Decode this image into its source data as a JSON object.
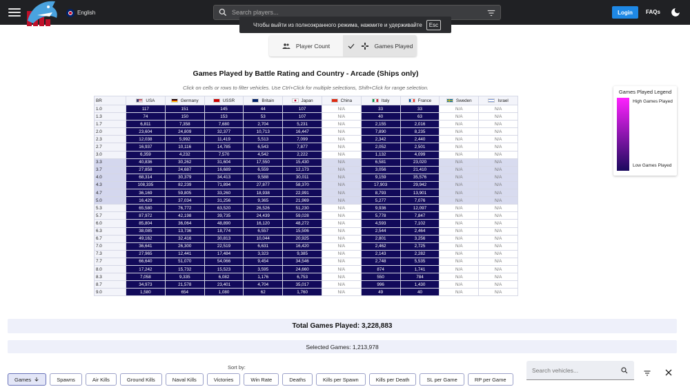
{
  "header": {
    "language": "English",
    "search_placeholder": "Search players...",
    "login_label": "Login",
    "faqs_label": "FAQs"
  },
  "toast": {
    "text": "Чтобы выйти из полноэкранного режима, нажмите и удерживайте",
    "key": "Esc"
  },
  "toggle": {
    "player_count": "Player Count",
    "games_played": "Games Played"
  },
  "title": "Games Played by Battle Rating and Country - Arcade (Ships only)",
  "subtitle": "Click on cells or rows to filter vehicles. Use Ctrl+Click for multiple selections, Shift+Click for range selection.",
  "table": {
    "br_header": "BR",
    "countries": [
      {
        "name": "USA",
        "flag": "us"
      },
      {
        "name": "Germany",
        "flag": "de"
      },
      {
        "name": "USSR",
        "flag": "su"
      },
      {
        "name": "Britain",
        "flag": "gb"
      },
      {
        "name": "Japan",
        "flag": "jp"
      },
      {
        "name": "China",
        "flag": "cn"
      },
      {
        "name": "Italy",
        "flag": "it"
      },
      {
        "name": "France",
        "flag": "fr"
      },
      {
        "name": "Sweden",
        "flag": "se"
      },
      {
        "name": "Israel",
        "flag": "il"
      }
    ],
    "rows": [
      {
        "br": "1.0",
        "sel": false,
        "cells": [
          "117",
          "151",
          "145",
          "44",
          "107",
          "N/A",
          "33",
          "33",
          "N/A",
          "N/A"
        ]
      },
      {
        "br": "1.3",
        "sel": false,
        "cells": [
          "74",
          "150",
          "153",
          "53",
          "107",
          "N/A",
          "40",
          "63",
          "N/A",
          "N/A"
        ]
      },
      {
        "br": "1.7",
        "sel": false,
        "cells": [
          "6,811",
          "7,358",
          "7,680",
          "2,704",
          "5,231",
          "N/A",
          "2,155",
          "2,016",
          "N/A",
          "N/A"
        ]
      },
      {
        "br": "2.0",
        "sel": false,
        "cells": [
          "23,604",
          "24,809",
          "32,377",
          "10,713",
          "16,447",
          "N/A",
          "7,890",
          "8,235",
          "N/A",
          "N/A"
        ]
      },
      {
        "br": "2.3",
        "sel": false,
        "cells": [
          "12,038",
          "5,992",
          "11,419",
          "5,513",
          "7,099",
          "N/A",
          "2,342",
          "2,440",
          "N/A",
          "N/A"
        ]
      },
      {
        "br": "2.7",
        "sel": false,
        "cells": [
          "16,937",
          "10,116",
          "14,785",
          "6,543",
          "7,877",
          "N/A",
          "2,052",
          "2,501",
          "N/A",
          "N/A"
        ]
      },
      {
        "br": "3.0",
        "sel": false,
        "cells": [
          "6,359",
          "4,232",
          "7,570",
          "4,542",
          "2,222",
          "N/A",
          "1,132",
          "4,099",
          "N/A",
          "N/A"
        ]
      },
      {
        "br": "3.3",
        "sel": true,
        "cells": [
          "40,836",
          "30,262",
          "31,604",
          "17,550",
          "15,430",
          "N/A",
          "6,581",
          "23,020",
          "N/A",
          "N/A"
        ]
      },
      {
        "br": "3.7",
        "sel": true,
        "cells": [
          "27,858",
          "24,687",
          "16,689",
          "6,559",
          "12,173",
          "N/A",
          "3,056",
          "21,410",
          "N/A",
          "N/A"
        ]
      },
      {
        "br": "4.0",
        "sel": true,
        "cells": [
          "68,314",
          "30,379",
          "34,413",
          "9,588",
          "30,011",
          "N/A",
          "9,159",
          "35,576",
          "N/A",
          "N/A"
        ]
      },
      {
        "br": "4.3",
        "sel": true,
        "cells": [
          "108,335",
          "82,239",
          "71,894",
          "27,877",
          "58,370",
          "N/A",
          "17,903",
          "29,942",
          "N/A",
          "N/A"
        ]
      },
      {
        "br": "4.7",
        "sel": true,
        "cells": [
          "36,169",
          "59,805",
          "33,260",
          "18,938",
          "22,991",
          "N/A",
          "8,793",
          "13,901",
          "N/A",
          "N/A"
        ]
      },
      {
        "br": "5.0",
        "sel": true,
        "cells": [
          "16,429",
          "37,034",
          "31,256",
          "9,365",
          "21,969",
          "N/A",
          "5,277",
          "7,076",
          "N/A",
          "N/A"
        ]
      },
      {
        "br": "5.3",
        "sel": false,
        "cells": [
          "65,580",
          "76,772",
          "63,520",
          "26,526",
          "51,230",
          "N/A",
          "9,936",
          "12,097",
          "N/A",
          "N/A"
        ]
      },
      {
        "br": "5.7",
        "sel": false,
        "cells": [
          "87,972",
          "42,198",
          "39,735",
          "24,439",
          "59,028",
          "N/A",
          "5,778",
          "7,847",
          "N/A",
          "N/A"
        ]
      },
      {
        "br": "6.0",
        "sel": false,
        "cells": [
          "85,804",
          "36,064",
          "48,890",
          "16,120",
          "48,272",
          "N/A",
          "4,593",
          "7,102",
          "N/A",
          "N/A"
        ]
      },
      {
        "br": "6.3",
        "sel": false,
        "cells": [
          "38,085",
          "13,736",
          "18,774",
          "6,557",
          "15,506",
          "N/A",
          "2,544",
          "2,464",
          "N/A",
          "N/A"
        ]
      },
      {
        "br": "6.7",
        "sel": false,
        "cells": [
          "49,162",
          "32,416",
          "30,813",
          "10,044",
          "20,925",
          "N/A",
          "2,801",
          "3,256",
          "N/A",
          "N/A"
        ]
      },
      {
        "br": "7.0",
        "sel": false,
        "cells": [
          "36,641",
          "26,300",
          "22,519",
          "6,631",
          "16,420",
          "N/A",
          "2,462",
          "2,725",
          "N/A",
          "N/A"
        ]
      },
      {
        "br": "7.3",
        "sel": false,
        "cells": [
          "27,965",
          "12,441",
          "17,484",
          "3,323",
          "9,385",
          "N/A",
          "2,143",
          "2,282",
          "N/A",
          "N/A"
        ]
      },
      {
        "br": "7.7",
        "sel": false,
        "cells": [
          "66,640",
          "51,070",
          "54,066",
          "9,454",
          "34,546",
          "N/A",
          "2,748",
          "5,535",
          "N/A",
          "N/A"
        ]
      },
      {
        "br": "8.0",
        "sel": false,
        "cells": [
          "17,242",
          "15,732",
          "15,523",
          "3,595",
          "24,660",
          "N/A",
          "874",
          "1,741",
          "N/A",
          "N/A"
        ]
      },
      {
        "br": "8.3",
        "sel": false,
        "cells": [
          "7,058",
          "9,335",
          "6,082",
          "1,176",
          "6,753",
          "N/A",
          "550",
          "784",
          "N/A",
          "N/A"
        ]
      },
      {
        "br": "8.7",
        "sel": false,
        "cells": [
          "34,973",
          "21,578",
          "23,401",
          "4,704",
          "35,017",
          "N/A",
          "996",
          "1,430",
          "N/A",
          "N/A"
        ]
      },
      {
        "br": "9.0",
        "sel": false,
        "cells": [
          "1,580",
          "654",
          "1,080",
          "62",
          "1,760",
          "N/A",
          "49",
          "40",
          "N/A",
          "N/A"
        ]
      }
    ]
  },
  "legend": {
    "title": "Games Played Legend",
    "high": "High Games Played",
    "low": "Low Games Played"
  },
  "totals": {
    "total": "Total Games Played: 3,228,883",
    "selected": "Selected Games: 1,213,978"
  },
  "sort": {
    "label": "Sort by:",
    "options": [
      "Games",
      "Spawns",
      "Air Kills",
      "Ground Kills",
      "Naval Kills",
      "Victories",
      "Win Rate",
      "Deaths",
      "Kills per Spawn",
      "Kills per Death",
      "SL per Game",
      "RP per Game"
    ],
    "active": "Games"
  },
  "vehicle_search_placeholder": "Search vehicles..."
}
